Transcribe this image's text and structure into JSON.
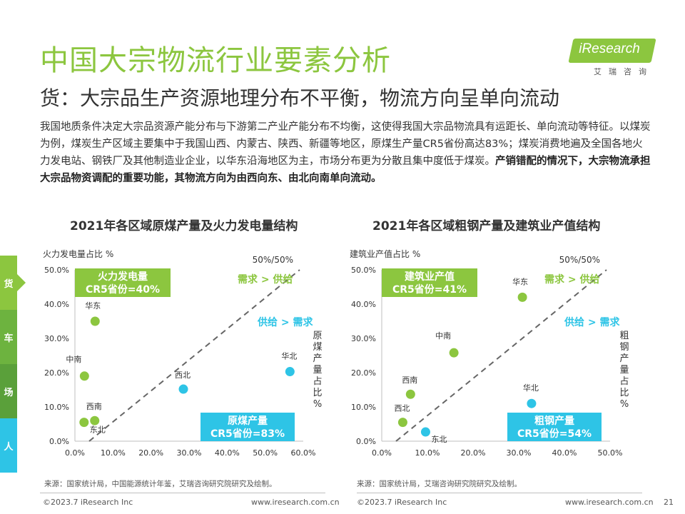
{
  "header": {
    "title": "中国大宗物流行业要素分析",
    "subtitle": "货：大宗品生产资源地理分布不平衡，物流方向呈单向流动",
    "logo_text": "iResearch",
    "logo_sub": "艾瑞咨询"
  },
  "paragraph": {
    "text1": "我国地质条件决定大宗品资源产能分布与下游第二产业产能分布不均衡，这使得我国大宗品物流具有运距长、单向流动等特征。以煤炭为例，煤炭生产区域主要集中于我国山西、内蒙古、陕西、新疆等地区，原煤生产量CR5省份高达83%；煤炭消费地遍及全国各地火力发电站、钢铁厂及其他制造业企业，以华东沿海地区为主，市场分布更为分散且集中度低于煤炭。",
    "text2": "产销错配的情况下，大宗物流承担大宗品物资调配的重要功能，其物流方向为由西向东、由北向南单向流动。"
  },
  "side_tabs": [
    {
      "label": "货",
      "color": "#8cc63f"
    },
    {
      "label": "车",
      "color": "#6db33f"
    },
    {
      "label": "场",
      "color": "#5aa03a"
    },
    {
      "label": "人",
      "color": "#2ec4e6"
    }
  ],
  "chart_data": [
    {
      "type": "scatter",
      "title": "2021年各区域原煤产量及火力发电量结构",
      "ylabel": "火力发电量占比 %",
      "xlabel": "原煤产量占比%",
      "xlim": [
        0,
        60
      ],
      "ylim": [
        0,
        50
      ],
      "xticks": [
        "0.0%",
        "10.0%",
        "20.0%",
        "30.0%",
        "40.0%",
        "50.0%",
        "60.0%"
      ],
      "yticks": [
        "0.0%",
        "10.0%",
        "20.0%",
        "30.0%",
        "40.0%",
        "50.0%"
      ],
      "diagonal_label": "50%/50%",
      "region_labels": {
        "upper": "需求 > 供给",
        "lower": "供给 > 需求"
      },
      "box_upper": {
        "line1": "火力发电量",
        "line2": "CR5省份=40%"
      },
      "box_lower": {
        "line1": "原煤产量",
        "line2": "CR5省份=83%"
      },
      "points": [
        {
          "label": "华东",
          "x": 5.3,
          "y": 35.0,
          "color": "#8cc63f"
        },
        {
          "label": "中南",
          "x": 2.5,
          "y": 19.0,
          "color": "#8cc63f"
        },
        {
          "label": "西南",
          "x": 5.2,
          "y": 6.0,
          "color": "#8cc63f"
        },
        {
          "label": "东北",
          "x": 2.4,
          "y": 5.5,
          "color": "#8cc63f"
        },
        {
          "label": "西北",
          "x": 28.5,
          "y": 15.2,
          "color": "#2ec4e6"
        },
        {
          "label": "华北",
          "x": 56.5,
          "y": 20.3,
          "color": "#2ec4e6"
        }
      ]
    },
    {
      "type": "scatter",
      "title": "2021年各区域粗钢产量及建筑业产值结构",
      "ylabel": "建筑业产值占比 %",
      "xlabel": "粗钢产量占比%",
      "xlim": [
        0,
        50
      ],
      "ylim": [
        0,
        50
      ],
      "xticks": [
        "0.0%",
        "10.0%",
        "20.0%",
        "30.0%",
        "40.0%",
        "50.0%"
      ],
      "yticks": [
        "0.0%",
        "10.0%",
        "20.0%",
        "30.0%",
        "40.0%",
        "50.0%"
      ],
      "diagonal_label": "50%/50%",
      "region_labels": {
        "upper": "需求 > 供给",
        "lower": "供给 > 需求"
      },
      "box_upper": {
        "line1": "建筑业产值",
        "line2": "CR5省份=41%"
      },
      "box_lower": {
        "line1": "粗钢产量",
        "line2": "CR5省份=54%"
      },
      "points": [
        {
          "label": "华东",
          "x": 30.8,
          "y": 42.0,
          "color": "#8cc63f"
        },
        {
          "label": "中南",
          "x": 15.8,
          "y": 25.8,
          "color": "#8cc63f"
        },
        {
          "label": "西南",
          "x": 6.3,
          "y": 13.7,
          "color": "#8cc63f"
        },
        {
          "label": "西北",
          "x": 4.6,
          "y": 5.5,
          "color": "#8cc63f"
        },
        {
          "label": "东北",
          "x": 9.6,
          "y": 2.7,
          "color": "#2ec4e6"
        },
        {
          "label": "华北",
          "x": 32.8,
          "y": 11.0,
          "color": "#2ec4e6"
        }
      ]
    }
  ],
  "sources": {
    "left": "来源：国家统计局，中国能源统计年鉴，艾瑞咨询研究院研究及绘制。",
    "right": "来源：国家统计局，艾瑞咨询研究院研究及绘制。"
  },
  "footer": {
    "copyright_left": "©2023.7 iResearch Inc",
    "url_left": "www.iresearch.com.cn",
    "copyright_right": "©2023.7 iResearch Inc",
    "url_right": "www.iresearch.com.cn",
    "page": "21"
  }
}
